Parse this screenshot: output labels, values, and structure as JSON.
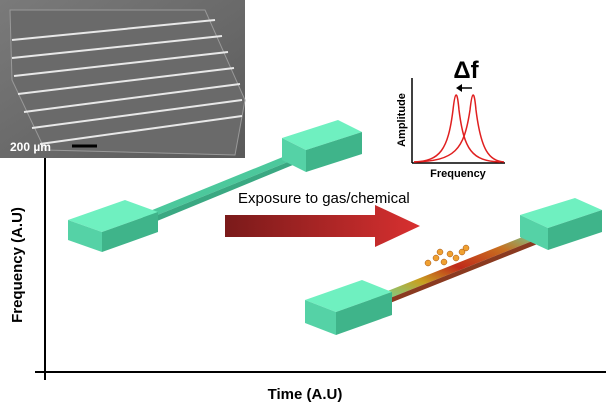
{
  "inset_image": {
    "scale_label": "200 µm"
  },
  "inset_plot": {
    "title": "Δf",
    "y_label": "Amplitude",
    "x_label": "Frequency"
  },
  "arrow_label": "Exposure to gas/chemical",
  "axes": {
    "y_label": "Frequency (A.U)",
    "x_label": "Time (A.U)"
  }
}
